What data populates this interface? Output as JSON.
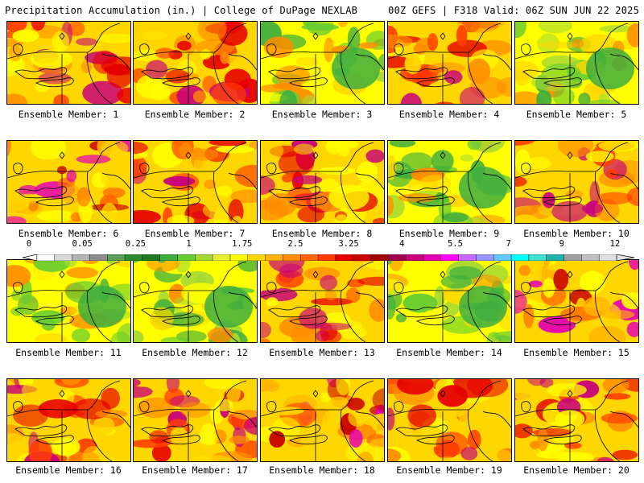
{
  "header": {
    "left": "Precipitation Accumulation (in.) | College of DuPage NEXLAB",
    "right": "00Z GEFS | F318 Valid: 06Z SUN JUN 22 2025"
  },
  "panels": [
    {
      "caption": "Ensemble Member: 1"
    },
    {
      "caption": "Ensemble Member: 2"
    },
    {
      "caption": "Ensemble Member: 3"
    },
    {
      "caption": "Ensemble Member: 4"
    },
    {
      "caption": "Ensemble Member: 5"
    },
    {
      "caption": "Ensemble Member: 6"
    },
    {
      "caption": "Ensemble Member: 7"
    },
    {
      "caption": "Ensemble Member: 8"
    },
    {
      "caption": "Ensemble Member: 9"
    },
    {
      "caption": "Ensemble Member: 10"
    },
    {
      "caption": "Ensemble Member: 11"
    },
    {
      "caption": "Ensemble Member: 12"
    },
    {
      "caption": "Ensemble Member: 13"
    },
    {
      "caption": "Ensemble Member: 14"
    },
    {
      "caption": "Ensemble Member: 15"
    },
    {
      "caption": "Ensemble Member: 16"
    },
    {
      "caption": "Ensemble Member: 17"
    },
    {
      "caption": "Ensemble Member: 18"
    },
    {
      "caption": "Ensemble Member: 19"
    },
    {
      "caption": "Ensemble Member: 20"
    }
  ],
  "colorbar": {
    "labels": [
      "0",
      "0.05",
      "0.25",
      "1",
      "1.75",
      "2.5",
      "3.25",
      "4",
      "5.5",
      "7",
      "9",
      "12"
    ],
    "colors": [
      "#ffffff",
      "#d9d9d9",
      "#b3b3b3",
      "#8c8c8c",
      "#5a9e5a",
      "#2e8b2e",
      "#1f7a1f",
      "#3fae3f",
      "#66cc33",
      "#a6d933",
      "#e6f033",
      "#ffff00",
      "#ffd700",
      "#ffb300",
      "#ff8c00",
      "#ff6400",
      "#ff3c00",
      "#e60000",
      "#c80000",
      "#a00000",
      "#a00050",
      "#c8007d",
      "#e600b4",
      "#ff00ff",
      "#c864ff",
      "#9696ff",
      "#64c8ff",
      "#00ffff",
      "#40e0d0",
      "#20b2aa",
      "#a0a0a0",
      "#c0c0c0",
      "#e0e0e0"
    ]
  }
}
